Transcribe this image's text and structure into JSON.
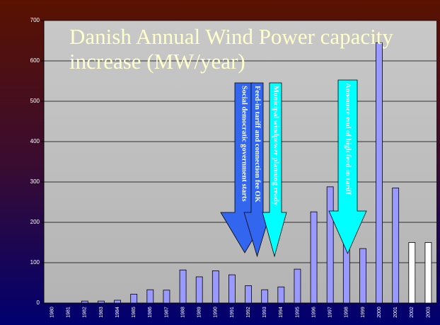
{
  "chart_data": {
    "type": "bar",
    "title": "Danish Annual Wind Power capacity increase (MW/year)",
    "categories": [
      "1980",
      "1981",
      "1982",
      "1983",
      "1984",
      "1985",
      "1986",
      "1987",
      "1988",
      "1989",
      "1990",
      "1991",
      "1992",
      "1993",
      "1994",
      "1995",
      "1996",
      "1997",
      "1998",
      "1999",
      "2000",
      "2001",
      "2002",
      "2003"
    ],
    "values": [
      0,
      0,
      5,
      5,
      7,
      22,
      33,
      32,
      82,
      65,
      80,
      70,
      43,
      33,
      40,
      84,
      226,
      288,
      313,
      135,
      645,
      285,
      150,
      150
    ],
    "colors": [
      "#9999ff",
      "#9999ff",
      "#9999ff",
      "#9999ff",
      "#9999ff",
      "#9999ff",
      "#9999ff",
      "#9999ff",
      "#9999ff",
      "#9999ff",
      "#9999ff",
      "#9999ff",
      "#9999ff",
      "#9999ff",
      "#9999ff",
      "#9999ff",
      "#9999ff",
      "#9999ff",
      "#9999ff",
      "#9999ff",
      "#9999ff",
      "#9999ff",
      "#ffffff",
      "#ffffff"
    ],
    "ylim": [
      0,
      700
    ],
    "yticks": [
      0,
      100,
      200,
      300,
      400,
      500,
      600,
      700
    ],
    "grid": true,
    "annotations": [
      "Social democratic government starts",
      "Feed-in tariff and connection fee OK",
      "Municipal windpower planning ready",
      "Announce end of high feed-in tariff"
    ]
  }
}
